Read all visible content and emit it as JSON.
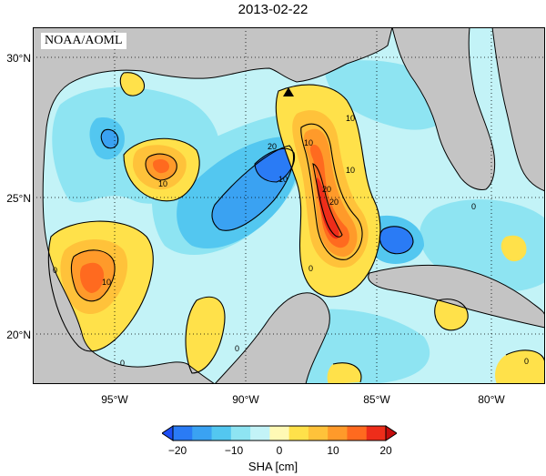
{
  "title": "2013-02-22",
  "credit": "NOAA/AOML",
  "axes": {
    "lat_labels": [
      "30°N",
      "25°N",
      "20°N"
    ],
    "lon_labels": [
      "95°W",
      "90°W",
      "85°W",
      "80°W"
    ]
  },
  "colorbar": {
    "label": "SHA [cm]",
    "ticks": [
      "−20",
      "−10",
      "0",
      "10",
      "20"
    ],
    "colors": [
      "#1d4ef5",
      "#2a7bf5",
      "#3aa2f2",
      "#53c7f0",
      "#8ee4f2",
      "#c3f3f7",
      "#fff9b5",
      "#ffe14a",
      "#ffc23a",
      "#ff9a2a",
      "#ff6a1f",
      "#ee2d1a",
      "#c40d0d"
    ]
  },
  "map_colors": {
    "land": "#c4c4c4",
    "ocean_base": "#c3f3f7",
    "coast": "#000000",
    "grid": "#000000"
  },
  "contour_labels": [
    "20",
    "10",
    "20",
    "10",
    "20",
    "10",
    "10",
    "0",
    "0",
    "10",
    "0",
    "0",
    "0",
    "0",
    "10"
  ]
}
